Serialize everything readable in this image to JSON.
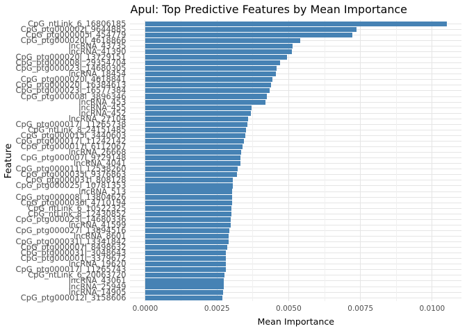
{
  "chart_data": {
    "type": "bar",
    "orientation": "horizontal",
    "title": "Apul: Top Predictive Features by Mean Importance",
    "xlabel": "Mean Importance",
    "ylabel": "Feature",
    "xlim": [
      -0.0005231,
      0.0110251
    ],
    "x_ticks": [
      {
        "value": 0.0,
        "label": "0.0000"
      },
      {
        "value": 0.0025,
        "label": "0.0025"
      },
      {
        "value": 0.005,
        "label": "0.0050"
      },
      {
        "value": 0.0075,
        "label": "0.0075"
      },
      {
        "value": 0.01,
        "label": "0.0100"
      }
    ],
    "x_minor_ticks": [
      0.00125,
      0.00375,
      0.00625,
      0.00875
    ],
    "grid": true,
    "legend": false,
    "categories": [
      "CpG_ntLink_6_16806185",
      "CpG_ptg000002l_9644885",
      "CpG_ptg000005l_454779",
      "CpG_ptg000020l_4618866",
      "lncRNA_43735",
      "lncRNA_41390",
      "CpG_ptg000020l_13729151",
      "CpG_ptg000008l_29354704",
      "CpG_ptg000023l_14680305",
      "lncRNA_18454",
      "CpG_ptg000020l_4618841",
      "CpG_ptg000020l_16384613",
      "CpG_ptg000023l_16577384",
      "CpG_ptg000008l_3896346",
      "lncRNA_453",
      "lncRNA_455",
      "lncRNA_452",
      "lncRNA_27104",
      "CpG_ptg000017l_11265738",
      "CpG_ntLink_8_24151485",
      "CpG_ptg000015l_3440603",
      "CpG_ptg000017l_11242142",
      "CpG_ptg000017l_6112067",
      "lncRNA_26668",
      "CpG_ptg000007l_9729148",
      "lncRNA_4041",
      "CpG_ptg000011l_12538260",
      "CpG_ptg000035l_9376863",
      "CpG_ptg000031l_808128",
      "CpG_ptg000025l_10781353",
      "lncRNA_513",
      "CpG_ptg000008l_13804626",
      "CpG_ptg000036l_4710194",
      "CpG_ntLink_6_10522325",
      "CpG_ntLink_8_12430852",
      "CpG_ptg000023l_14680336",
      "lncRNA_41599",
      "CpG_ptg000027l_13894516",
      "lncRNA_8601",
      "CpG_ptg000031l_13341842",
      "CpG_ptg000007l_8498632",
      "CpG_ptg000031l_3048643",
      "CpG_ptg000001l_3379672",
      "lncRNA_19620",
      "CpG_ptg000017l_11265743",
      "CpG_ntLink_6_20063720",
      "lncRNA_43061",
      "lncRNA_25949",
      "lncRNA_14905",
      "CpG_ptg000012l_3158606"
    ],
    "values": [
      0.0105,
      0.00737,
      0.00722,
      0.00541,
      0.00514,
      0.0051,
      0.00493,
      0.0047,
      0.00458,
      0.00455,
      0.00443,
      0.00439,
      0.00434,
      0.00424,
      0.00419,
      0.0037,
      0.00367,
      0.00358,
      0.00357,
      0.00352,
      0.00348,
      0.00344,
      0.00339,
      0.00334,
      0.00333,
      0.00331,
      0.00323,
      0.00319,
      0.00306,
      0.00305,
      0.00304,
      0.00303,
      0.00302,
      0.00301,
      0.003,
      0.00298,
      0.00297,
      0.00292,
      0.00291,
      0.0029,
      0.00286,
      0.00282,
      0.00282,
      0.00281,
      0.00281,
      0.00275,
      0.00274,
      0.00273,
      0.00271,
      0.00269
    ],
    "colors": {
      "bar_fill": "#4682B4",
      "grid_major": "#e5e5e5",
      "grid_minor": "#f0f0f0",
      "axis_text": "#4d4d4d",
      "title_text": "#000000",
      "background": "#ffffff"
    }
  }
}
